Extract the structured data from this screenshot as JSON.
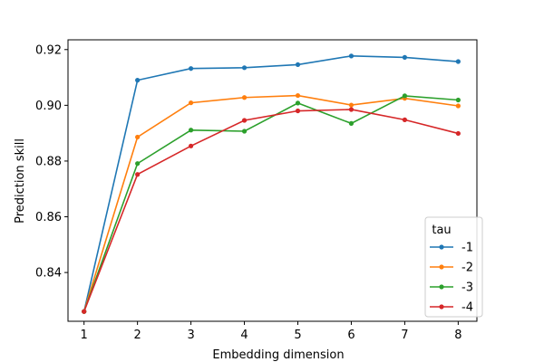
{
  "chart_data": {
    "type": "line",
    "xlabel": "Embedding dimension",
    "ylabel": "Prediction skill",
    "x": [
      1,
      2,
      3,
      4,
      5,
      6,
      7,
      8
    ],
    "xticks": [
      "1",
      "2",
      "3",
      "4",
      "5",
      "6",
      "7",
      "8"
    ],
    "yticks": [
      0.84,
      0.86,
      0.88,
      0.9,
      0.92
    ],
    "ytick_labels": [
      "0.84",
      "0.86",
      "0.88",
      "0.90",
      "0.92"
    ],
    "xlim": [
      0.7,
      8.35
    ],
    "ylim": [
      0.8225,
      0.9235
    ],
    "grid": false,
    "legend": {
      "title": "tau",
      "placement": "lower-right"
    },
    "series": [
      {
        "name": "-1",
        "color": "#1f77b4",
        "values": [
          0.826,
          0.909,
          0.9132,
          0.9135,
          0.9146,
          0.9177,
          0.9172,
          0.9157
        ]
      },
      {
        "name": "-2",
        "color": "#ff7f0e",
        "values": [
          0.826,
          0.8886,
          0.9009,
          0.9028,
          0.9035,
          0.9001,
          0.9025,
          0.8998
        ]
      },
      {
        "name": "-3",
        "color": "#2ca02c",
        "values": [
          0.826,
          0.8791,
          0.8911,
          0.8907,
          0.9008,
          0.8935,
          0.9034,
          0.9019
        ]
      },
      {
        "name": "-4",
        "color": "#d62728",
        "values": [
          0.826,
          0.8752,
          0.8854,
          0.8946,
          0.898,
          0.8985,
          0.8948,
          0.8899
        ]
      }
    ]
  }
}
